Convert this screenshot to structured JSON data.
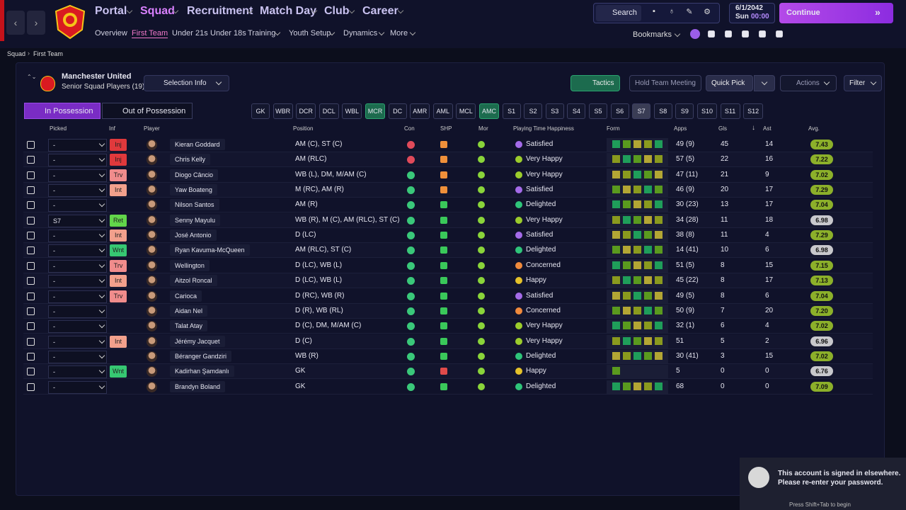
{
  "nav": {
    "menu": [
      "Portal",
      "Squad",
      "Recruitment",
      "Match Day",
      "Club",
      "Career"
    ],
    "submenu": [
      "Overview",
      "First Team",
      "Under 21s",
      "Under 18s",
      "Training",
      "Youth Setup",
      "Dynamics",
      "More"
    ],
    "search": "Search",
    "date": "6/1/2042",
    "day": "Sun",
    "time": "00:00",
    "continue": "Continue",
    "bookmarks": "Bookmarks"
  },
  "breadcrumb": [
    "Squad",
    "First Team"
  ],
  "team": {
    "name": "Manchester United",
    "subtitle": "Senior Squad Players (19)",
    "selection_info": "Selection Info"
  },
  "actions": [
    "Tactics",
    "Hold Team Meeting",
    "Quick Pick",
    "Actions",
    "Filter"
  ],
  "tabs": [
    "In Possession",
    "Out of Possession"
  ],
  "positions": [
    "GK",
    "WBR",
    "DCR",
    "DCL",
    "WBL",
    "MCR",
    "DC",
    "AMR",
    "AML",
    "MCL",
    "AMC",
    "S1",
    "S2",
    "S3",
    "S4",
    "S5",
    "S6",
    "S7",
    "S8",
    "S9",
    "S10",
    "S11",
    "S12"
  ],
  "columns": [
    "Picked",
    "Inf",
    "Player",
    "Position",
    "Con",
    "SHP",
    "Mor",
    "Playing Time Happiness",
    "Form",
    "Apps",
    "Gls",
    "Ast",
    "Avg."
  ],
  "table": {
    "rows": [
      {
        "picked": "-",
        "inf": {
          "label": "Inj",
          "color": "#e0393c"
        },
        "name": "Kieran Goddard",
        "position": "AM (C), ST (C)",
        "happiness": "Satisfied",
        "hap_color": "#a46be8",
        "apps": "49 (9)",
        "gls": 45,
        "ast": 14,
        "avg": "7.43"
      },
      {
        "picked": "-",
        "inf": {
          "label": "Inj",
          "color": "#e0393c"
        },
        "name": "Chris Kelly",
        "position": "AM (RLC)",
        "happiness": "Very Happy",
        "hap_color": "#9ccc2c",
        "apps": "57 (5)",
        "gls": 22,
        "ast": 16,
        "avg": "7.22"
      },
      {
        "picked": "-",
        "inf": {
          "label": "Trv",
          "color": "#f08c8c"
        },
        "name": "Diogo Câncio",
        "position": "WB (L), DM, M/AM (C)",
        "happiness": "Very Happy",
        "hap_color": "#9ccc2c",
        "apps": "47 (11)",
        "gls": 21,
        "ast": 9,
        "avg": "7.02"
      },
      {
        "picked": "-",
        "inf": {
          "label": "Int",
          "color": "#f2a08c"
        },
        "name": "Yaw Boateng",
        "position": "M (RC), AM (R)",
        "happiness": "Satisfied",
        "hap_color": "#a46be8",
        "apps": "46 (9)",
        "gls": 20,
        "ast": 17,
        "avg": "7.29"
      },
      {
        "picked": "-",
        "inf": null,
        "name": "Nilson Santos",
        "position": "AM (R)",
        "happiness": "Delighted",
        "hap_color": "#2fc47a",
        "apps": "30 (23)",
        "gls": 13,
        "ast": 17,
        "avg": "7.04"
      },
      {
        "picked": "S7",
        "inf": {
          "label": "Ret",
          "color": "#62d64a"
        },
        "name": "Senny Mayulu",
        "position": "WB (R), M (C), AM (RLC), ST (C)",
        "happiness": "Very Happy",
        "hap_color": "#9ccc2c",
        "apps": "34 (28)",
        "gls": 11,
        "ast": 18,
        "avg": "6.98"
      },
      {
        "picked": "-",
        "inf": {
          "label": "Int",
          "color": "#f2a08c"
        },
        "name": "José Antonio",
        "position": "D (LC)",
        "happiness": "Satisfied",
        "hap_color": "#a46be8",
        "apps": "38 (8)",
        "gls": 11,
        "ast": 4,
        "avg": "7.29"
      },
      {
        "picked": "-",
        "inf": {
          "label": "Wnt",
          "color": "#36c872"
        },
        "name": "Ryan Kavuma-McQueen",
        "position": "AM (RLC), ST (C)",
        "happiness": "Delighted",
        "hap_color": "#2fc47a",
        "apps": "14 (41)",
        "gls": 10,
        "ast": 6,
        "avg": "6.98"
      },
      {
        "picked": "-",
        "inf": {
          "label": "Trv",
          "color": "#f08c8c"
        },
        "name": "Wellington",
        "position": "D (LC), WB (L)",
        "happiness": "Concerned",
        "hap_color": "#f08a3c",
        "apps": "51 (5)",
        "gls": 8,
        "ast": 15,
        "avg": "7.15"
      },
      {
        "picked": "-",
        "inf": {
          "label": "Int",
          "color": "#f2a08c"
        },
        "name": "Aitzol Roncal",
        "position": "D (LC), WB (L)",
        "happiness": "Happy",
        "hap_color": "#e5c22a",
        "apps": "45 (22)",
        "gls": 8,
        "ast": 17,
        "avg": "7.13"
      },
      {
        "picked": "-",
        "inf": {
          "label": "Trv",
          "color": "#f08c8c"
        },
        "name": "Carioca",
        "position": "D (RC), WB (R)",
        "happiness": "Satisfied",
        "hap_color": "#a46be8",
        "apps": "49 (5)",
        "gls": 8,
        "ast": 6,
        "avg": "7.04"
      },
      {
        "picked": "-",
        "inf": null,
        "name": "Aidan Nel",
        "position": "D (R), WB (RL)",
        "happiness": "Concerned",
        "hap_color": "#f08a3c",
        "apps": "50 (9)",
        "gls": 7,
        "ast": 20,
        "avg": "7.20"
      },
      {
        "picked": "-",
        "inf": null,
        "name": "Talat Atay",
        "position": "D (C), DM, M/AM (C)",
        "happiness": "Very Happy",
        "hap_color": "#9ccc2c",
        "apps": "32 (1)",
        "gls": 6,
        "ast": 4,
        "avg": "7.02"
      },
      {
        "picked": "-",
        "inf": {
          "label": "Int",
          "color": "#f2a08c"
        },
        "name": "Jérémy Jacquet",
        "position": "D (C)",
        "happiness": "Very Happy",
        "hap_color": "#9ccc2c",
        "apps": "51",
        "gls": 5,
        "ast": 2,
        "avg": "6.96"
      },
      {
        "picked": "-",
        "inf": null,
        "name": "Béranger Gandziri",
        "position": "WB (R)",
        "happiness": "Delighted",
        "hap_color": "#2fc47a",
        "apps": "30 (41)",
        "gls": 3,
        "ast": 15,
        "avg": "7.02"
      },
      {
        "picked": "-",
        "inf": {
          "label": "Wnt",
          "color": "#36c872"
        },
        "name": "Kadirhan Şamdanlı",
        "position": "GK",
        "happiness": "Happy",
        "hap_color": "#e5c22a",
        "apps": "5",
        "gls": 0,
        "ast": 0,
        "avg": "6.76"
      },
      {
        "picked": "-",
        "inf": null,
        "name": "Brandyn Boland",
        "position": "GK",
        "happiness": "Delighted",
        "hap_color": "#2fc47a",
        "apps": "68",
        "gls": 0,
        "ast": 0,
        "avg": "7.09"
      }
    ]
  },
  "notification": {
    "line1": "This account is signed in elsewhere.",
    "line2": "Please re-enter your password.",
    "hint": "Press Shift+Tab to begin"
  }
}
